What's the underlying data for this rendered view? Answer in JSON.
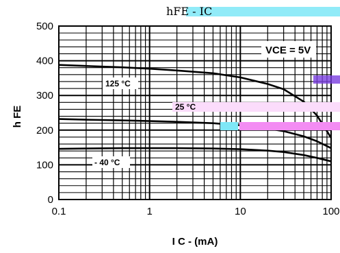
{
  "chart_data": {
    "type": "line",
    "title": "hFE - IC",
    "xlabel": "I C - (mA)",
    "ylabel": "h FE",
    "annotation": "VCE = 5V",
    "x_scale": "log",
    "xlim": [
      0.1,
      100
    ],
    "ylim": [
      0,
      500
    ],
    "grid": true,
    "x_ticks": [
      "0.1",
      "1",
      "10",
      "100"
    ],
    "y_ticks": [
      "0",
      "100",
      "200",
      "300",
      "400",
      "500"
    ],
    "series": [
      {
        "name": "125 °C",
        "x": [
          0.1,
          0.2,
          0.5,
          1,
          2,
          5,
          10,
          20,
          30,
          50,
          70,
          100
        ],
        "y": [
          388,
          385,
          381,
          377,
          372,
          364,
          352,
          333,
          318,
          282,
          242,
          178
        ]
      },
      {
        "name": "25 °C",
        "x": [
          0.1,
          0.2,
          0.5,
          1,
          2,
          5,
          10,
          20,
          30,
          50,
          70,
          100
        ],
        "y": [
          232,
          230,
          228,
          226,
          224,
          220,
          214,
          205,
          197,
          182,
          168,
          148
        ]
      },
      {
        "name": "- 40 °C",
        "x": [
          0.1,
          0.2,
          0.5,
          1,
          2,
          5,
          10,
          20,
          30,
          50,
          70,
          100
        ],
        "y": [
          146,
          147,
          148,
          148,
          148,
          147,
          145,
          141,
          137,
          128,
          120,
          110
        ]
      }
    ]
  },
  "colors": {
    "grid": "#000000",
    "curve": "#000000",
    "highlight_cyan": "#7ee7f7",
    "highlight_magenta": "#f38cf3",
    "highlight_pink": "#fbdcfb",
    "highlight_purple": "#7a3fe0"
  }
}
